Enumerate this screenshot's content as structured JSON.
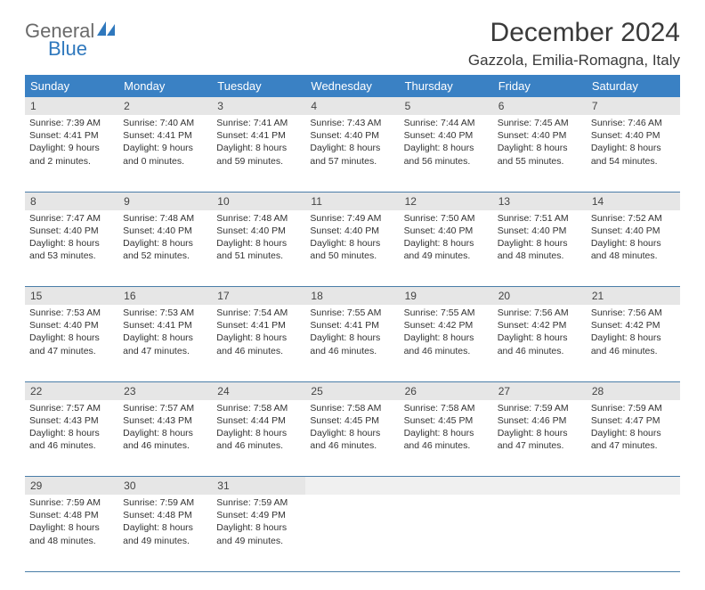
{
  "logo": {
    "text1": "General",
    "text2": "Blue"
  },
  "title": "December 2024",
  "location": "Gazzola, Emilia-Romagna, Italy",
  "colors": {
    "header_bg": "#3a81c4",
    "daynum_bg": "#e6e6e6",
    "row_border": "#4a7da8",
    "logo_gray": "#6a6a6a",
    "logo_blue": "#2f78bd"
  },
  "weekdays": [
    "Sunday",
    "Monday",
    "Tuesday",
    "Wednesday",
    "Thursday",
    "Friday",
    "Saturday"
  ],
  "weeks": [
    [
      {
        "n": "1",
        "sr": "7:39 AM",
        "ss": "4:41 PM",
        "dl": "9 hours and 2 minutes."
      },
      {
        "n": "2",
        "sr": "7:40 AM",
        "ss": "4:41 PM",
        "dl": "9 hours and 0 minutes."
      },
      {
        "n": "3",
        "sr": "7:41 AM",
        "ss": "4:41 PM",
        "dl": "8 hours and 59 minutes."
      },
      {
        "n": "4",
        "sr": "7:43 AM",
        "ss": "4:40 PM",
        "dl": "8 hours and 57 minutes."
      },
      {
        "n": "5",
        "sr": "7:44 AM",
        "ss": "4:40 PM",
        "dl": "8 hours and 56 minutes."
      },
      {
        "n": "6",
        "sr": "7:45 AM",
        "ss": "4:40 PM",
        "dl": "8 hours and 55 minutes."
      },
      {
        "n": "7",
        "sr": "7:46 AM",
        "ss": "4:40 PM",
        "dl": "8 hours and 54 minutes."
      }
    ],
    [
      {
        "n": "8",
        "sr": "7:47 AM",
        "ss": "4:40 PM",
        "dl": "8 hours and 53 minutes."
      },
      {
        "n": "9",
        "sr": "7:48 AM",
        "ss": "4:40 PM",
        "dl": "8 hours and 52 minutes."
      },
      {
        "n": "10",
        "sr": "7:48 AM",
        "ss": "4:40 PM",
        "dl": "8 hours and 51 minutes."
      },
      {
        "n": "11",
        "sr": "7:49 AM",
        "ss": "4:40 PM",
        "dl": "8 hours and 50 minutes."
      },
      {
        "n": "12",
        "sr": "7:50 AM",
        "ss": "4:40 PM",
        "dl": "8 hours and 49 minutes."
      },
      {
        "n": "13",
        "sr": "7:51 AM",
        "ss": "4:40 PM",
        "dl": "8 hours and 48 minutes."
      },
      {
        "n": "14",
        "sr": "7:52 AM",
        "ss": "4:40 PM",
        "dl": "8 hours and 48 minutes."
      }
    ],
    [
      {
        "n": "15",
        "sr": "7:53 AM",
        "ss": "4:40 PM",
        "dl": "8 hours and 47 minutes."
      },
      {
        "n": "16",
        "sr": "7:53 AM",
        "ss": "4:41 PM",
        "dl": "8 hours and 47 minutes."
      },
      {
        "n": "17",
        "sr": "7:54 AM",
        "ss": "4:41 PM",
        "dl": "8 hours and 46 minutes."
      },
      {
        "n": "18",
        "sr": "7:55 AM",
        "ss": "4:41 PM",
        "dl": "8 hours and 46 minutes."
      },
      {
        "n": "19",
        "sr": "7:55 AM",
        "ss": "4:42 PM",
        "dl": "8 hours and 46 minutes."
      },
      {
        "n": "20",
        "sr": "7:56 AM",
        "ss": "4:42 PM",
        "dl": "8 hours and 46 minutes."
      },
      {
        "n": "21",
        "sr": "7:56 AM",
        "ss": "4:42 PM",
        "dl": "8 hours and 46 minutes."
      }
    ],
    [
      {
        "n": "22",
        "sr": "7:57 AM",
        "ss": "4:43 PM",
        "dl": "8 hours and 46 minutes."
      },
      {
        "n": "23",
        "sr": "7:57 AM",
        "ss": "4:43 PM",
        "dl": "8 hours and 46 minutes."
      },
      {
        "n": "24",
        "sr": "7:58 AM",
        "ss": "4:44 PM",
        "dl": "8 hours and 46 minutes."
      },
      {
        "n": "25",
        "sr": "7:58 AM",
        "ss": "4:45 PM",
        "dl": "8 hours and 46 minutes."
      },
      {
        "n": "26",
        "sr": "7:58 AM",
        "ss": "4:45 PM",
        "dl": "8 hours and 46 minutes."
      },
      {
        "n": "27",
        "sr": "7:59 AM",
        "ss": "4:46 PM",
        "dl": "8 hours and 47 minutes."
      },
      {
        "n": "28",
        "sr": "7:59 AM",
        "ss": "4:47 PM",
        "dl": "8 hours and 47 minutes."
      }
    ],
    [
      {
        "n": "29",
        "sr": "7:59 AM",
        "ss": "4:48 PM",
        "dl": "8 hours and 48 minutes."
      },
      {
        "n": "30",
        "sr": "7:59 AM",
        "ss": "4:48 PM",
        "dl": "8 hours and 49 minutes."
      },
      {
        "n": "31",
        "sr": "7:59 AM",
        "ss": "4:49 PM",
        "dl": "8 hours and 49 minutes."
      },
      null,
      null,
      null,
      null
    ]
  ],
  "labels": {
    "sunrise": "Sunrise:",
    "sunset": "Sunset:",
    "daylight": "Daylight:"
  }
}
